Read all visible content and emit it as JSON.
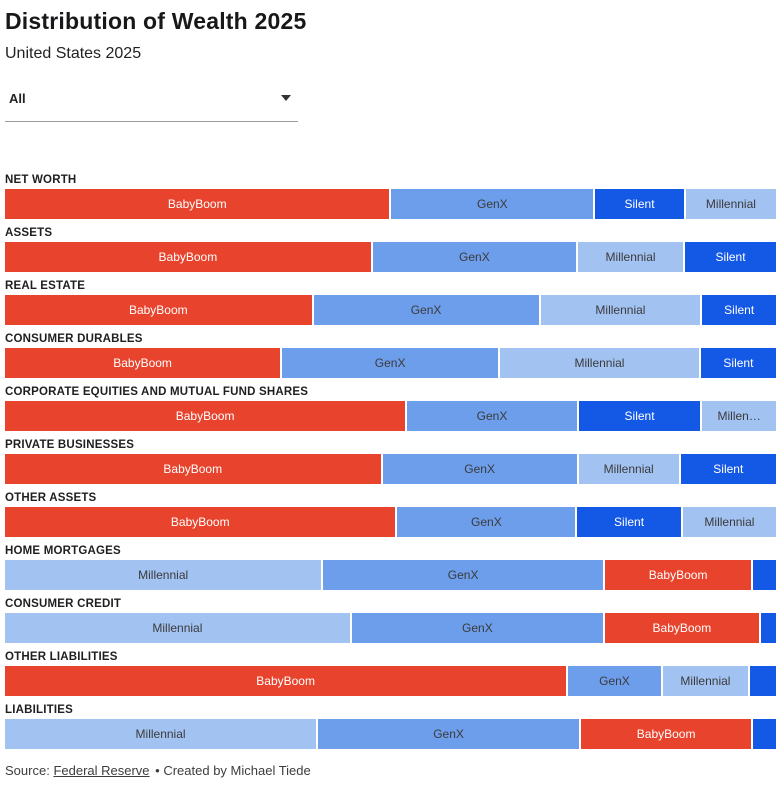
{
  "header": {
    "title": "Distribution of Wealth 2025",
    "subtitle": "United States 2025"
  },
  "filter": {
    "selected": "All"
  },
  "series_styles": {
    "BabyBoom": {
      "fill": "#e8432c",
      "text": "#ffffff"
    },
    "GenX": {
      "fill": "#6d9eeb",
      "text": "#3b3b3b"
    },
    "Silent": {
      "fill": "#1458e6",
      "text": "#ffffff"
    },
    "Millennial": {
      "fill": "#a2c2f2",
      "text": "#3b3b3b"
    }
  },
  "chart_data": {
    "type": "bar",
    "subtype": "stacked-horizontal-percentage",
    "title": "Distribution of Wealth 2025",
    "subtitle": "United States 2025",
    "unit": "percent share of category total (estimated from bar widths)",
    "legend": [
      "BabyBoom",
      "GenX",
      "Silent",
      "Millennial"
    ],
    "legend_position": "in-bar-labels",
    "grid": false,
    "xlim": [
      0,
      100
    ],
    "rows": [
      {
        "category": "NET WORTH",
        "segments": [
          {
            "name": "BabyBoom",
            "label": "BabyBoom",
            "value": 50.8
          },
          {
            "name": "GenX",
            "label": "GenX",
            "value": 26.4
          },
          {
            "name": "Silent",
            "label": "Silent",
            "value": 11.3
          },
          {
            "name": "Millennial",
            "label": "Millennial",
            "value": 11.5
          }
        ]
      },
      {
        "category": "ASSETS",
        "segments": [
          {
            "name": "BabyBoom",
            "label": "BabyBoom",
            "value": 48.3
          },
          {
            "name": "GenX",
            "label": "GenX",
            "value": 26.6
          },
          {
            "name": "Millennial",
            "label": "Millennial",
            "value": 13.5
          },
          {
            "name": "Silent",
            "label": "Silent",
            "value": 11.6
          }
        ]
      },
      {
        "category": "REAL ESTATE",
        "segments": [
          {
            "name": "BabyBoom",
            "label": "BabyBoom",
            "value": 40.4
          },
          {
            "name": "GenX",
            "label": "GenX",
            "value": 29.5
          },
          {
            "name": "Millennial",
            "label": "Millennial",
            "value": 20.8
          },
          {
            "name": "Silent",
            "label": "Silent",
            "value": 9.3
          }
        ]
      },
      {
        "category": "CONSUMER DURABLES",
        "segments": [
          {
            "name": "BabyBoom",
            "label": "BabyBoom",
            "value": 36.2
          },
          {
            "name": "GenX",
            "label": "GenX",
            "value": 28.3
          },
          {
            "name": "Millennial",
            "label": "Millennial",
            "value": 26.0
          },
          {
            "name": "Silent",
            "label": "Silent",
            "value": 9.5
          }
        ]
      },
      {
        "category": "CORPORATE EQUITIES AND MUTUAL FUND SHARES",
        "segments": [
          {
            "name": "BabyBoom",
            "label": "BabyBoom",
            "value": 52.9
          },
          {
            "name": "GenX",
            "label": "GenX",
            "value": 22.1
          },
          {
            "name": "Silent",
            "label": "Silent",
            "value": 15.7
          },
          {
            "name": "Millennial",
            "label": "Millen…",
            "value": 9.3
          }
        ]
      },
      {
        "category": "PRIVATE BUSINESSES",
        "segments": [
          {
            "name": "BabyBoom",
            "label": "BabyBoom",
            "value": 49.6
          },
          {
            "name": "GenX",
            "label": "GenX",
            "value": 25.4
          },
          {
            "name": "Millennial",
            "label": "Millennial",
            "value": 12.8
          },
          {
            "name": "Silent",
            "label": "Silent",
            "value": 12.2
          }
        ]
      },
      {
        "category": "OTHER ASSETS",
        "segments": [
          {
            "name": "BabyBoom",
            "label": "BabyBoom",
            "value": 51.6
          },
          {
            "name": "GenX",
            "label": "GenX",
            "value": 23.2
          },
          {
            "name": "Silent",
            "label": "Silent",
            "value": 13.3
          },
          {
            "name": "Millennial",
            "label": "Millennial",
            "value": 11.9
          }
        ]
      },
      {
        "category": "HOME MORTGAGES",
        "segments": [
          {
            "name": "Millennial",
            "label": "Millennial",
            "value": 41.7
          },
          {
            "name": "GenX",
            "label": "GenX",
            "value": 36.8
          },
          {
            "name": "BabyBoom",
            "label": "BabyBoom",
            "value": 19.0
          },
          {
            "name": "Silent",
            "label": "",
            "value": 2.5
          }
        ]
      },
      {
        "category": "CONSUMER CREDIT",
        "segments": [
          {
            "name": "Millennial",
            "label": "Millennial",
            "value": 45.5
          },
          {
            "name": "GenX",
            "label": "GenX",
            "value": 33.0
          },
          {
            "name": "BabyBoom",
            "label": "BabyBoom",
            "value": 20.0
          },
          {
            "name": "Silent",
            "label": "",
            "value": 1.5
          }
        ]
      },
      {
        "category": "OTHER LIABILITIES",
        "segments": [
          {
            "name": "BabyBoom",
            "label": "BabyBoom",
            "value": 74.4
          },
          {
            "name": "GenX",
            "label": "GenX",
            "value": 11.8
          },
          {
            "name": "Millennial",
            "label": "Millennial",
            "value": 10.9
          },
          {
            "name": "Silent",
            "label": "",
            "value": 2.9
          }
        ]
      },
      {
        "category": "LIABILITIES",
        "segments": [
          {
            "name": "Millennial",
            "label": "Millennial",
            "value": 41.0
          },
          {
            "name": "GenX",
            "label": "GenX",
            "value": 34.3
          },
          {
            "name": "BabyBoom",
            "label": "BabyBoom",
            "value": 22.2
          },
          {
            "name": "Silent",
            "label": "",
            "value": 2.5
          }
        ]
      }
    ]
  },
  "footer": {
    "source_label": "Source:",
    "source_link": "Federal Reserve",
    "byline": "• Created by Michael Tiede"
  }
}
